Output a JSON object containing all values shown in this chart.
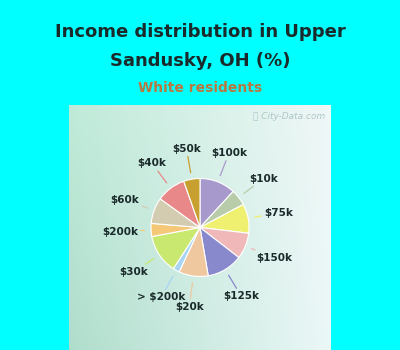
{
  "title_line1": "Income distribution in Upper",
  "title_line2": "Sandusky, OH (%)",
  "subtitle": "White residents",
  "title_color": "#1a2a2a",
  "subtitle_color": "#b87840",
  "bg_top": "#00ffff",
  "bg_chart_tl": "#c8e8d8",
  "bg_chart_tr": "#e8f0f0",
  "bg_chart_br": "#f0f8f8",
  "bg_chart_bl": "#b0dcc8",
  "watermark": "ⓘ City-Data.com",
  "slices": [
    {
      "label": "$100k",
      "value": 11,
      "color": "#a899cc"
    },
    {
      "label": "$10k",
      "value": 5,
      "color": "#b8ccaa"
    },
    {
      "label": "$75k",
      "value": 9,
      "color": "#f0f070"
    },
    {
      "label": "$150k",
      "value": 8,
      "color": "#f0b8b8"
    },
    {
      "label": "$125k",
      "value": 11,
      "color": "#8888cc"
    },
    {
      "label": "$20k",
      "value": 9,
      "color": "#f0c8a0"
    },
    {
      "label": "> $200k",
      "value": 2,
      "color": "#a8d4f5"
    },
    {
      "label": "$30k",
      "value": 12,
      "color": "#c8e870"
    },
    {
      "label": "$200k",
      "value": 4,
      "color": "#f5c878"
    },
    {
      "label": "$60k",
      "value": 8,
      "color": "#d4ccb0"
    },
    {
      "label": "$40k",
      "value": 9,
      "color": "#e88888"
    },
    {
      "label": "$50k",
      "value": 5,
      "color": "#c8a030"
    }
  ],
  "title_fontsize": 13,
  "subtitle_fontsize": 10,
  "label_fontsize": 7.5
}
